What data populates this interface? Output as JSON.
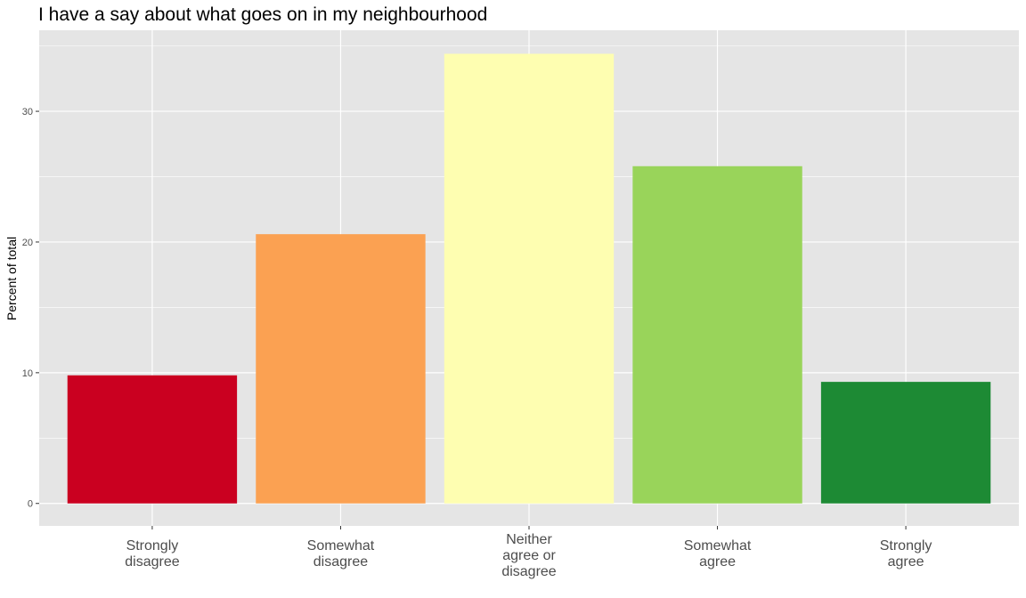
{
  "chart_data": {
    "type": "bar",
    "title": "I have a say about what goes on in my neighbourhood",
    "ylabel": "Percent of total",
    "xlabel": "",
    "categories": [
      "Strongly disagree",
      "Somewhat disagree",
      "Neither agree or disagree",
      "Somewhat agree",
      "Strongly agree"
    ],
    "category_label_lines": [
      [
        "Strongly",
        "disagree"
      ],
      [
        "Somewhat",
        "disagree"
      ],
      [
        "Neither",
        "agree or",
        "disagree"
      ],
      [
        "Somewhat",
        "agree"
      ],
      [
        "Strongly",
        "agree"
      ]
    ],
    "values": [
      9.8,
      20.6,
      34.4,
      25.8,
      9.3
    ],
    "colors": [
      "#ca0020",
      "#fba152",
      "#fefeb1",
      "#99d45a",
      "#1d8a34"
    ],
    "ylim": [
      -1.72,
      36.2
    ],
    "yticks": [
      0,
      10,
      20,
      30
    ],
    "grid": true,
    "legend": "none",
    "panel_background": "#e5e5e5",
    "grid_color": "#ffffff"
  }
}
